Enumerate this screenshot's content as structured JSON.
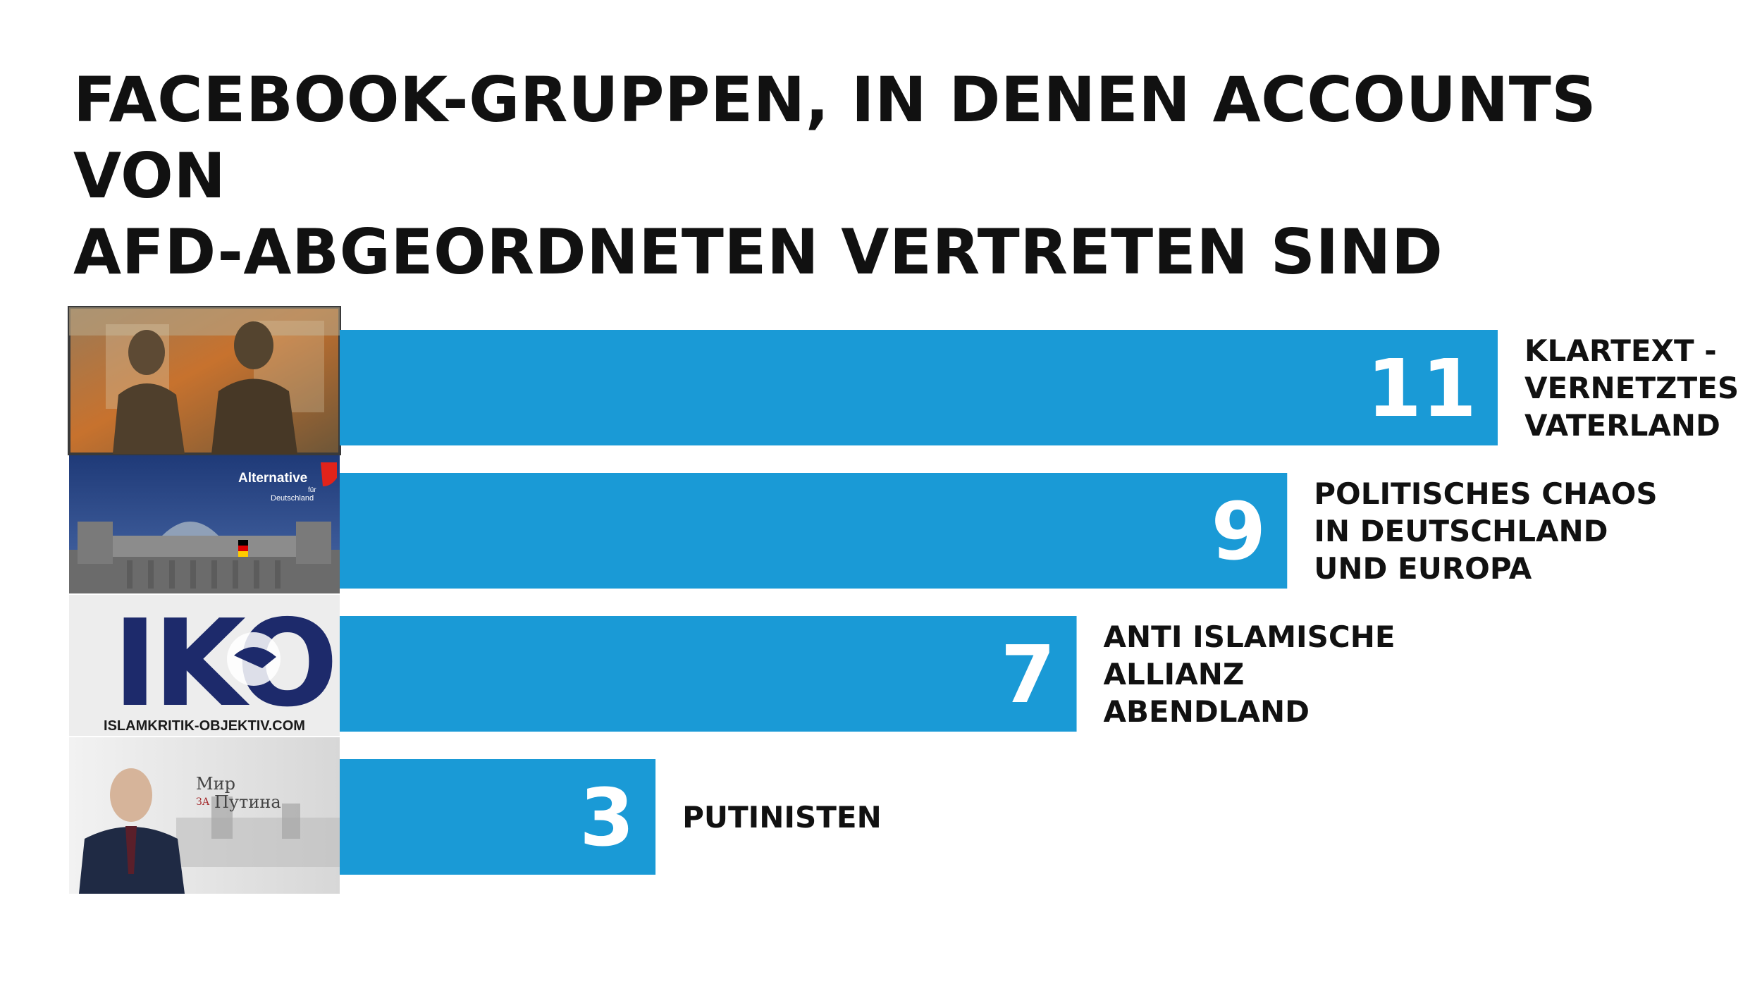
{
  "title_lines": [
    "FACEBOOK-GRUPPEN, IN DENEN ACCOUNTS VON",
    "AFD-ABGEORDNETEN VERTRETEN SIND"
  ],
  "colors": {
    "bar": "#1a9ad6",
    "text": "#111111",
    "background": "#ffffff"
  },
  "thumbnails": [
    {
      "icon": "statue-photo-thumbnail"
    },
    {
      "icon": "reichstag-afd-thumbnail",
      "caption_lines": [
        "Alternative",
        "für",
        "Deutschland"
      ],
      "brand_color": "#e2231a"
    },
    {
      "icon": "islamkritik-logo-thumbnail",
      "logo_text": "IKO",
      "caption": "ISLAMKRITIK-OBJEKTIV.COM",
      "brand_color": "#1d2a6b"
    },
    {
      "icon": "putin-photo-thumbnail",
      "caption_lines": [
        "Мир",
        "ЗА",
        "Путина"
      ]
    }
  ],
  "chart_data": {
    "type": "bar",
    "orientation": "horizontal",
    "title": "FACEBOOK-GRUPPEN, IN DENEN ACCOUNTS VON AFD-ABGEORDNETEN VERTRETEN SIND",
    "categories": [
      "KLARTEXT - VERNETZTES VATERLAND",
      "POLITISCHES CHAOS IN DEUTSCHLAND UND EUROPA",
      "ANTI ISLAMISCHE ALLIANZ ABENDLAND",
      "PUTINISTEN"
    ],
    "label_lines": [
      [
        "KLARTEXT -",
        "VERNETZTES",
        "VATERLAND"
      ],
      [
        "POLITISCHES CHAOS",
        "IN DEUTSCHLAND",
        "UND EUROPA"
      ],
      [
        "ANTI ISLAMISCHE",
        "ALLIANZ",
        "ABENDLAND"
      ],
      [
        "PUTINISTEN"
      ]
    ],
    "values": [
      11,
      9,
      7,
      3
    ],
    "xlim": [
      0,
      11
    ],
    "grid": false,
    "legend": "none"
  }
}
